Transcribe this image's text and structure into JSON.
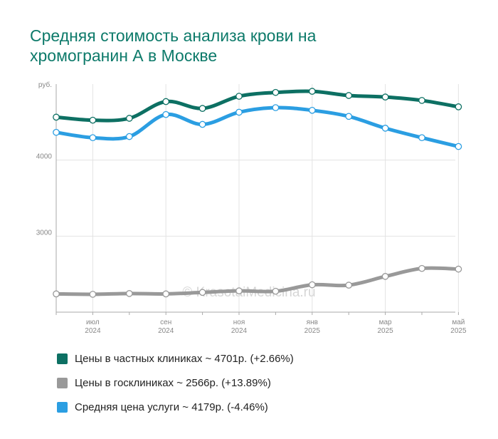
{
  "title": "Средняя стоимость анализа крови на хромогранин А в Москве",
  "watermark": "© KrasotaiMedicina.ru",
  "chart_data": {
    "type": "line",
    "y_unit_label": "руб.",
    "yticks": [
      4000,
      3000
    ],
    "ylim": [
      2000,
      5000
    ],
    "x_ticks": [
      {
        "month": "июл",
        "year": "2024",
        "index": 1
      },
      {
        "month": "сен",
        "year": "2024",
        "index": 3
      },
      {
        "month": "ноя",
        "year": "2024",
        "index": 5
      },
      {
        "month": "янв",
        "year": "2025",
        "index": 7
      },
      {
        "month": "мар",
        "year": "2025",
        "index": 9
      },
      {
        "month": "май",
        "year": "2025",
        "index": 11
      }
    ],
    "series": [
      {
        "name": "Цены в частных клиниках",
        "color": "#0d7063",
        "values": [
          4565,
          4525,
          4550,
          4770,
          4680,
          4840,
          4890,
          4905,
          4850,
          4830,
          4785,
          4701
        ]
      },
      {
        "name": "Цены в госклиниках",
        "color": "#999999",
        "values": [
          2240,
          2235,
          2245,
          2240,
          2260,
          2280,
          2275,
          2360,
          2355,
          2470,
          2575,
          2566
        ]
      },
      {
        "name": "Средняя цена услуги",
        "color": "#2b9ee2",
        "values": [
          4365,
          4295,
          4310,
          4600,
          4470,
          4630,
          4690,
          4655,
          4575,
          4420,
          4295,
          4179
        ]
      }
    ]
  },
  "legend": [
    {
      "label": "Цены в частных клиниках ~ 4701р. (+2.66%)",
      "color": "#0d7063"
    },
    {
      "label": "Цены в госклиниках ~ 2566р. (+13.89%)",
      "color": "#999999"
    },
    {
      "label": "Средняя цена услуги ~ 4179р. (-4.46%)",
      "color": "#2b9ee2"
    }
  ]
}
